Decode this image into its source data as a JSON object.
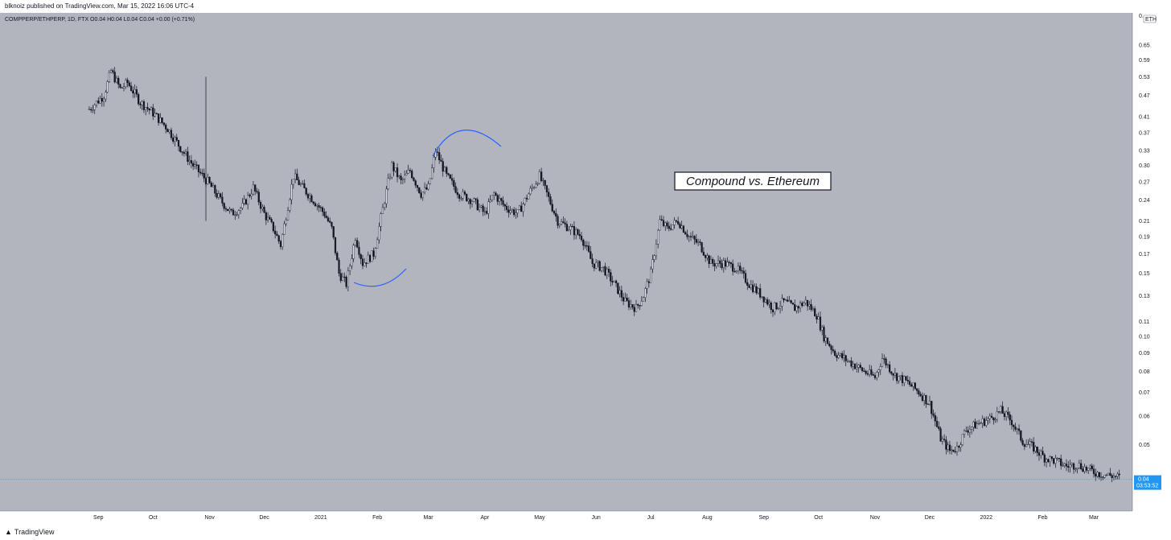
{
  "header": {
    "publisher_line": "blknoiz published on TradingView.com, Mar 15, 2022 16:06 UTC-4"
  },
  "legend": {
    "text": "COMPPERP/ETHPERP, 1D, FTX  O0.04  H0.04  L0.04  C0.04  +0.00 (+0.71%)"
  },
  "price_axis": {
    "currency_badge": "ETH",
    "top_marker": "0."
  },
  "last_price": {
    "value": "0.04",
    "countdown": "03:53:52"
  },
  "annotation": {
    "label": "Compound vs. Ethereum"
  },
  "footer": {
    "brand": "TradingView"
  },
  "colors": {
    "background": "#b2b5be",
    "candle": "#131722",
    "annotation_arc": "#2962ff",
    "price_line": "#2196f3"
  },
  "chart_data": {
    "type": "candlestick",
    "title": "",
    "y_scale": "log",
    "ylim": [
      0.036,
      0.72
    ],
    "y_ticks": [
      "0.65",
      "0.59",
      "0.53",
      "0.47",
      "0.41",
      "0.37",
      "0.33",
      "0.30",
      "0.27",
      "0.24",
      "0.21",
      "0.19",
      "0.17",
      "0.15",
      "0.13",
      "0.11",
      "0.10",
      "0.09",
      "0.08",
      "0.07",
      "0.06",
      "0.05",
      "0.04"
    ],
    "x_ticks": [
      "Sep",
      "Oct",
      "Nov",
      "Dec",
      "2021",
      "Feb",
      "Mar",
      "Apr",
      "May",
      "Jun",
      "Jul",
      "Aug",
      "Sep",
      "Oct",
      "Nov",
      "Dec",
      "2022",
      "Feb",
      "Mar"
    ],
    "x_range": [
      "2020-08-01",
      "2022-03-31"
    ],
    "close_path": [
      [
        "2020-08-27",
        0.43
      ],
      [
        "2020-09-04",
        0.47
      ],
      [
        "2020-09-08",
        0.55
      ],
      [
        "2020-09-13",
        0.49
      ],
      [
        "2020-09-17",
        0.51
      ],
      [
        "2020-09-24",
        0.45
      ],
      [
        "2020-10-01",
        0.42
      ],
      [
        "2020-10-09",
        0.38
      ],
      [
        "2020-10-17",
        0.33
      ],
      [
        "2020-10-23",
        0.3
      ],
      [
        "2020-10-31",
        0.27
      ],
      [
        "2020-11-07",
        0.24
      ],
      [
        "2020-11-13",
        0.22
      ],
      [
        "2020-11-19",
        0.23
      ],
      [
        "2020-11-25",
        0.26
      ],
      [
        "2020-12-01",
        0.22
      ],
      [
        "2020-12-06",
        0.2
      ],
      [
        "2020-12-10",
        0.18
      ],
      [
        "2020-12-17",
        0.28
      ],
      [
        "2020-12-22",
        0.26
      ],
      [
        "2020-12-28",
        0.24
      ],
      [
        "2021-01-03",
        0.22
      ],
      [
        "2021-01-07",
        0.2
      ],
      [
        "2021-01-11",
        0.15
      ],
      [
        "2021-01-15",
        0.14
      ],
      [
        "2021-01-20",
        0.19
      ],
      [
        "2021-01-24",
        0.16
      ],
      [
        "2021-01-30",
        0.17
      ],
      [
        "2021-02-05",
        0.24
      ],
      [
        "2021-02-09",
        0.3
      ],
      [
        "2021-02-14",
        0.27
      ],
      [
        "2021-02-19",
        0.29
      ],
      [
        "2021-02-25",
        0.25
      ],
      [
        "2021-03-01",
        0.26
      ],
      [
        "2021-03-05",
        0.33
      ],
      [
        "2021-03-11",
        0.28
      ],
      [
        "2021-03-18",
        0.25
      ],
      [
        "2021-03-25",
        0.24
      ],
      [
        "2021-04-01",
        0.22
      ],
      [
        "2021-04-06",
        0.25
      ],
      [
        "2021-04-12",
        0.23
      ],
      [
        "2021-04-19",
        0.22
      ],
      [
        "2021-04-25",
        0.25
      ],
      [
        "2021-05-01",
        0.28
      ],
      [
        "2021-05-05",
        0.25
      ],
      [
        "2021-05-11",
        0.21
      ],
      [
        "2021-05-18",
        0.2
      ],
      [
        "2021-05-24",
        0.19
      ],
      [
        "2021-05-30",
        0.16
      ],
      [
        "2021-06-05",
        0.155
      ],
      [
        "2021-06-11",
        0.14
      ],
      [
        "2021-06-17",
        0.125
      ],
      [
        "2021-06-23",
        0.12
      ],
      [
        "2021-06-27",
        0.13
      ],
      [
        "2021-07-01",
        0.15
      ],
      [
        "2021-07-06",
        0.21
      ],
      [
        "2021-07-10",
        0.2
      ],
      [
        "2021-07-16",
        0.21
      ],
      [
        "2021-07-22",
        0.19
      ],
      [
        "2021-07-28",
        0.18
      ],
      [
        "2021-08-03",
        0.16
      ],
      [
        "2021-08-10",
        0.16
      ],
      [
        "2021-08-17",
        0.155
      ],
      [
        "2021-08-24",
        0.14
      ],
      [
        "2021-08-31",
        0.13
      ],
      [
        "2021-09-06",
        0.12
      ],
      [
        "2021-09-12",
        0.125
      ],
      [
        "2021-09-18",
        0.12
      ],
      [
        "2021-09-24",
        0.125
      ],
      [
        "2021-09-30",
        0.115
      ],
      [
        "2021-10-04",
        0.1
      ],
      [
        "2021-10-10",
        0.09
      ],
      [
        "2021-10-18",
        0.085
      ],
      [
        "2021-10-26",
        0.08
      ],
      [
        "2021-11-01",
        0.077
      ],
      [
        "2021-11-05",
        0.087
      ],
      [
        "2021-11-12",
        0.078
      ],
      [
        "2021-11-18",
        0.075
      ],
      [
        "2021-11-25",
        0.07
      ],
      [
        "2021-12-01",
        0.065
      ],
      [
        "2021-12-07",
        0.052
      ],
      [
        "2021-12-12",
        0.048
      ],
      [
        "2021-12-16",
        0.049
      ],
      [
        "2021-12-21",
        0.055
      ],
      [
        "2021-12-27",
        0.057
      ],
      [
        "2022-01-03",
        0.059
      ],
      [
        "2022-01-09",
        0.062
      ],
      [
        "2022-01-15",
        0.058
      ],
      [
        "2022-01-21",
        0.051
      ],
      [
        "2022-01-27",
        0.049
      ],
      [
        "2022-02-02",
        0.046
      ],
      [
        "2022-02-08",
        0.045
      ],
      [
        "2022-02-14",
        0.0435
      ],
      [
        "2022-02-20",
        0.044
      ],
      [
        "2022-02-26",
        0.0425
      ],
      [
        "2022-03-04",
        0.0415
      ],
      [
        "2022-03-10",
        0.041
      ],
      [
        "2022-03-15",
        0.0405
      ]
    ],
    "wick_spike": {
      "date": "2020-10-30",
      "high": 0.53,
      "low": 0.21
    }
  }
}
